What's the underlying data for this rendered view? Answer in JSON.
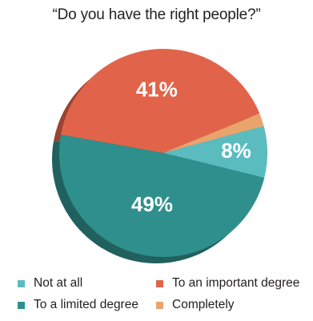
{
  "chart_data": {
    "type": "pie",
    "title": "“Do you have the right people?”",
    "slices": [
      {
        "label": "Not at all",
        "value": 8,
        "data_label": "8%",
        "color": "#5bbcbf"
      },
      {
        "label": "To a limited degree",
        "value": 49,
        "data_label": "49%",
        "color": "#2f8f8c"
      },
      {
        "label": "To an important degree",
        "value": 41,
        "data_label": "41%",
        "color": "#e1644a"
      },
      {
        "label": "Completely",
        "value": 2,
        "data_label": "",
        "color": "#e9a46e"
      }
    ],
    "legend": {
      "placement": "bottom",
      "items": [
        {
          "label": "Not at all",
          "color": "#5bbcbf"
        },
        {
          "label": "To an important degree",
          "color": "#e1644a"
        },
        {
          "label": "To a limited degree",
          "color": "#2f8f8c"
        },
        {
          "label": "Completely",
          "color": "#e9a46e"
        }
      ]
    }
  }
}
